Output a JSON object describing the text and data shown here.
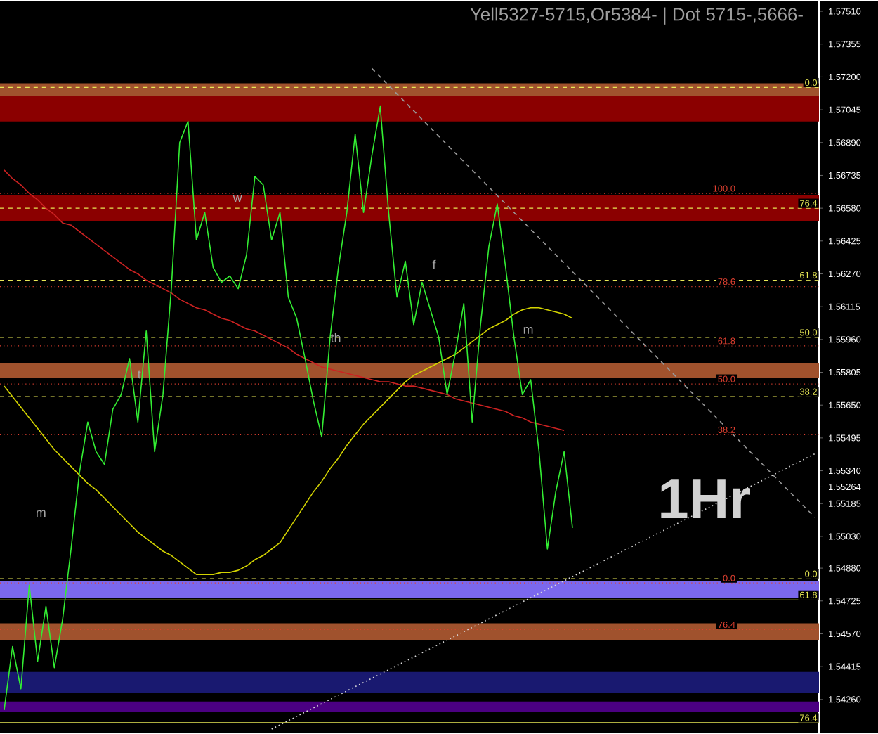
{
  "chart_data": {
    "type": "line",
    "title": "Yell5327-5715,Or5384- | Dot 5715-,5666-",
    "categories": [
      null,
      null,
      null,
      null,
      null,
      null,
      null,
      null,
      null,
      null,
      null,
      null,
      null,
      null,
      null,
      null,
      null,
      null,
      null,
      null,
      null,
      null,
      null,
      null,
      null,
      null,
      null,
      null,
      null,
      null,
      null,
      null,
      null,
      null,
      null,
      null,
      null,
      null,
      null,
      null,
      null,
      null,
      null,
      null,
      null,
      null,
      null,
      null,
      null,
      null,
      null,
      null,
      null,
      null,
      null,
      null,
      null,
      null,
      null,
      null,
      null,
      null,
      null,
      null,
      null,
      null,
      null,
      null,
      null,
      null,
      null,
      null,
      null,
      null,
      null,
      null,
      null,
      null,
      null,
      null,
      null,
      null,
      null,
      null,
      null,
      null,
      null,
      null,
      null,
      null,
      null,
      null,
      null,
      null,
      null,
      null,
      null,
      null
    ],
    "ylim": [
      1.541,
      1.5756
    ],
    "tick_labels": "y",
    "yticks": [
      {
        "value": 1.5751,
        "label": "1.57510"
      },
      1.57355,
      {
        "value": 1.572,
        "label": "1.57200"
      },
      1.57045,
      {
        "value": 1.5689,
        "label": "1.56890"
      },
      1.56735,
      {
        "value": 1.5658,
        "label": "1.56580"
      },
      1.56425,
      {
        "value": 1.5627,
        "label": "1.56270"
      },
      1.56115,
      {
        "value": 1.5596,
        "label": "1.55960"
      },
      1.55805,
      {
        "value": 1.5565,
        "label": "1.55650"
      },
      1.55495,
      {
        "value": 1.5534,
        "label": "1.55340"
      },
      1.55264,
      1.55185,
      {
        "value": 1.5503,
        "label": "1.55030"
      },
      {
        "value": 1.5488,
        "label": "1.54880"
      },
      1.54725,
      {
        "value": 1.5457,
        "label": "1.54570"
      },
      1.54415,
      {
        "value": 1.5426,
        "label": "1.54260"
      }
    ],
    "series": [
      {
        "color": "#cc2222",
        "line_style": "solid",
        "values": [
          1.5676,
          1.5672,
          1.5669,
          1.5665,
          1.5662,
          1.5658,
          1.5655,
          1.5651,
          1.565,
          1.5647,
          1.5644,
          1.5641,
          1.5638,
          1.5635,
          1.5632,
          1.5629,
          1.5627,
          1.5624,
          1.5622,
          1.562,
          1.5618,
          1.5615,
          1.5613,
          1.5611,
          1.561,
          1.5608,
          1.5606,
          1.5605,
          1.5603,
          1.5601,
          1.56,
          1.5598,
          1.5596,
          1.5594,
          1.5592,
          1.5589,
          1.5587,
          1.5585,
          1.5583,
          1.5582,
          1.5581,
          1.558,
          1.5579,
          1.5578,
          1.5577,
          1.5576,
          1.5576,
          1.5575,
          1.5574,
          1.5574,
          1.5573,
          1.5572,
          1.5571,
          1.557,
          1.5568,
          1.5567,
          1.5566,
          1.5565,
          1.5564,
          1.5563,
          1.5562,
          1.556,
          1.5559,
          1.5557,
          1.5556,
          1.5555,
          1.5554,
          1.5553,
          null,
          null,
          null,
          null,
          null,
          null,
          null,
          null,
          null,
          null,
          null,
          null,
          null,
          null,
          null,
          null,
          null,
          null,
          null,
          null,
          null,
          null,
          null,
          null,
          null,
          null,
          null,
          null,
          null,
          null
        ]
      },
      {
        "color": "#d4d400",
        "line_style": "solid",
        "values": [
          1.5574,
          1.5569,
          1.5564,
          1.5559,
          1.5554,
          1.5549,
          1.5544,
          1.554,
          1.5536,
          1.5532,
          1.5528,
          1.5525,
          1.5521,
          1.5517,
          1.5513,
          1.5509,
          1.5505,
          1.5502,
          1.5499,
          1.5496,
          1.5494,
          1.5491,
          1.5488,
          1.5485,
          1.5485,
          1.5485,
          1.5486,
          1.5486,
          1.5487,
          1.5489,
          1.5492,
          1.5494,
          1.5497,
          1.55,
          1.5506,
          1.5512,
          1.5518,
          1.5524,
          1.5529,
          1.5535,
          1.554,
          1.5546,
          1.5551,
          1.5556,
          1.556,
          1.5564,
          1.5568,
          1.5572,
          1.5576,
          1.5579,
          1.5581,
          1.5583,
          1.5585,
          1.5587,
          1.5589,
          1.5592,
          1.5595,
          1.5598,
          1.5601,
          1.5603,
          1.5605,
          1.5608,
          1.561,
          1.5611,
          1.5611,
          1.561,
          1.5609,
          1.5608,
          1.5606,
          null,
          null,
          null,
          null,
          null,
          null,
          null,
          null,
          null,
          null,
          null,
          null,
          null,
          null,
          null,
          null,
          null,
          null,
          null,
          null,
          null,
          null,
          null,
          null,
          null,
          null,
          null,
          null,
          null
        ]
      },
      {
        "color": "#33ee33",
        "line_style": "solid",
        "values": [
          1.5421,
          1.5451,
          1.5431,
          1.548,
          1.5444,
          1.547,
          1.5441,
          1.5464,
          1.5497,
          1.5533,
          1.5557,
          1.5543,
          1.5537,
          1.5563,
          1.557,
          1.5587,
          1.5557,
          1.56,
          1.5543,
          1.557,
          1.562,
          1.5689,
          1.5699,
          1.5643,
          1.5656,
          1.563,
          1.5623,
          1.5626,
          1.562,
          1.5636,
          1.5673,
          1.5669,
          1.5643,
          1.5656,
          1.5616,
          1.5606,
          1.5587,
          1.5567,
          1.555,
          1.5597,
          1.563,
          1.5656,
          1.5693,
          1.5656,
          1.5683,
          1.5706,
          1.5656,
          1.5616,
          1.5633,
          1.5603,
          1.5623,
          1.561,
          1.5597,
          1.557,
          1.559,
          1.5613,
          1.5557,
          1.5603,
          1.564,
          1.566,
          1.563,
          1.5597,
          1.557,
          1.5577,
          1.5543,
          1.5497,
          1.5524,
          1.5543,
          1.5507,
          null,
          null,
          null,
          null,
          null,
          null,
          null,
          null,
          null,
          null,
          null,
          null,
          null,
          null,
          null,
          null,
          null,
          null,
          null,
          null,
          null,
          null,
          null,
          null,
          null,
          null,
          null,
          null,
          null
        ]
      },
      {
        "color": "#9a9a9a",
        "line_style": "dashed",
        "values": [
          null,
          null,
          null,
          null,
          null,
          null,
          null,
          null,
          null,
          null,
          null,
          null,
          null,
          null,
          null,
          null,
          null,
          null,
          null,
          null,
          null,
          null,
          null,
          null,
          null,
          null,
          null,
          null,
          null,
          null,
          null,
          null,
          null,
          null,
          null,
          null,
          null,
          null,
          null,
          null,
          null,
          null,
          null,
          null,
          1.5724,
          1.572,
          1.5716,
          1.5712,
          1.5708,
          1.5704,
          1.57,
          1.5696,
          1.5692,
          1.5688,
          1.5684,
          1.568,
          1.5676,
          1.5672,
          1.5668,
          1.5664,
          1.566,
          1.5656,
          1.5652,
          1.5648,
          1.5644,
          1.564,
          1.5636,
          1.5632,
          1.5628,
          1.5624,
          1.562,
          1.5616,
          1.5612,
          1.5608,
          1.5604,
          1.56,
          1.5596,
          1.5592,
          1.5588,
          1.5584,
          1.558,
          1.5576,
          1.5572,
          1.5568,
          1.5564,
          1.556,
          1.5556,
          1.5552,
          1.5548,
          1.5544,
          1.554,
          1.5536,
          1.5532,
          1.5528,
          1.5524,
          1.552,
          1.5516,
          1.5512
        ]
      },
      {
        "color": "#dddddd",
        "line_style": "dotted",
        "values": [
          null,
          null,
          null,
          null,
          null,
          null,
          null,
          null,
          null,
          null,
          null,
          null,
          null,
          null,
          null,
          null,
          null,
          null,
          null,
          null,
          null,
          null,
          null,
          null,
          null,
          null,
          null,
          null,
          null,
          null,
          null,
          null,
          1.5412,
          1.5414,
          1.5416,
          1.5418,
          1.542,
          1.5422,
          1.5424,
          1.5426,
          1.5428,
          1.543,
          1.5432,
          1.5434,
          1.5436,
          1.5438,
          1.544,
          1.5442,
          1.5444,
          1.5446,
          1.5448,
          1.545,
          1.5452,
          1.5454,
          1.5456,
          1.5458,
          1.546,
          1.5462,
          1.5464,
          1.5466,
          1.5468,
          1.547,
          1.5472,
          1.5474,
          1.5476,
          1.5478,
          1.548,
          1.5482,
          1.5484,
          1.5486,
          1.5488,
          1.549,
          1.5492,
          1.5494,
          1.5496,
          1.5498,
          1.55,
          1.5502,
          1.5504,
          1.5506,
          1.5508,
          1.551,
          1.5512,
          1.5514,
          1.5516,
          1.5518,
          1.552,
          1.5522,
          1.5524,
          1.5526,
          1.5528,
          1.553,
          1.5532,
          1.5534,
          1.5536,
          1.5538,
          1.554,
          1.5542
        ]
      }
    ],
    "bands": [
      {
        "axis": "y",
        "from": 1.5711,
        "to": 1.5717,
        "color": "#a0522d"
      },
      {
        "axis": "y",
        "from": 1.5699,
        "to": 1.5711,
        "color": "#8b0000"
      },
      {
        "axis": "y",
        "from": 1.5652,
        "to": 1.5664,
        "color": "#8b0000"
      },
      {
        "axis": "y",
        "from": 1.5578,
        "to": 1.5585,
        "color": "#a0522d"
      },
      {
        "axis": "y",
        "from": 1.5474,
        "to": 1.5482,
        "color": "#7b68ee"
      },
      {
        "axis": "y",
        "from": 1.5454,
        "to": 1.5462,
        "color": "#a0522d"
      },
      {
        "axis": "y",
        "from": 1.5429,
        "to": 1.5439,
        "color": "#191970"
      },
      {
        "axis": "y",
        "from": 1.542,
        "to": 1.5425,
        "color": "#4b0082"
      }
    ],
    "ref_lines": [
      {
        "axis": "y",
        "value": 1.5715,
        "color": "#e8e855",
        "line_style": "dashed"
      },
      {
        "axis": "y",
        "value": 1.5658,
        "color": "#e8e855",
        "line_style": "dashed"
      },
      {
        "axis": "y",
        "value": 1.5624,
        "color": "#e8e855",
        "line_style": "dashed"
      },
      {
        "axis": "y",
        "value": 1.5597,
        "color": "#e8e855",
        "line_style": "dashed"
      },
      {
        "axis": "y",
        "value": 1.5569,
        "color": "#e8e855",
        "line_style": "dashed"
      },
      {
        "axis": "y",
        "value": 1.5483,
        "color": "#e8e855",
        "line_style": "dashed"
      },
      {
        "axis": "y",
        "value": 1.5473,
        "color": "#e8e855",
        "line_style": "solid"
      },
      {
        "axis": "y",
        "value": 1.5415,
        "color": "#e8e855",
        "line_style": "solid"
      },
      {
        "axis": "y",
        "value": 1.5665,
        "color": "#e04030",
        "line_style": "dotted"
      },
      {
        "axis": "y",
        "value": 1.5621,
        "color": "#e04030",
        "line_style": "dotted"
      },
      {
        "axis": "y",
        "value": 1.5593,
        "color": "#e04030",
        "line_style": "dotted"
      },
      {
        "axis": "y",
        "value": 1.5575,
        "color": "#e04030",
        "line_style": "dotted"
      },
      {
        "axis": "y",
        "value": 1.5551,
        "color": "#e04030",
        "line_style": "dotted"
      },
      {
        "axis": "y",
        "value": 1.5481,
        "color": "#e04030",
        "line_style": "dotted"
      },
      {
        "axis": "y",
        "value": 1.5459,
        "color": "#e04030",
        "line_style": "dotted"
      }
    ],
    "annotations": [
      "1Hr",
      "w",
      "t",
      "m",
      "th",
      "f",
      "m",
      {
        "text": "0.0",
        "y": 1.5715
      },
      {
        "text": "76.4",
        "y": 1.5658
      },
      {
        "text": "61.8",
        "y": 1.5624
      },
      {
        "text": "50.0",
        "y": 1.5597
      },
      {
        "text": "38.2",
        "y": 1.5569
      },
      {
        "text": "0.0",
        "y": 1.5483
      },
      {
        "text": "61.8",
        "y": 1.5473
      },
      {
        "text": "76.4",
        "y": 1.5415
      },
      {
        "text": "100.0",
        "y": 1.5665
      },
      {
        "text": "78.6",
        "y": 1.5621
      },
      {
        "text": "61.8",
        "y": 1.5593
      },
      {
        "text": "50.0",
        "y": 1.5575
      },
      {
        "text": "38.2",
        "y": 1.5551
      },
      {
        "text": "0.0",
        "y": 1.5481
      },
      {
        "text": "76.4",
        "y": 1.5459
      }
    ]
  }
}
